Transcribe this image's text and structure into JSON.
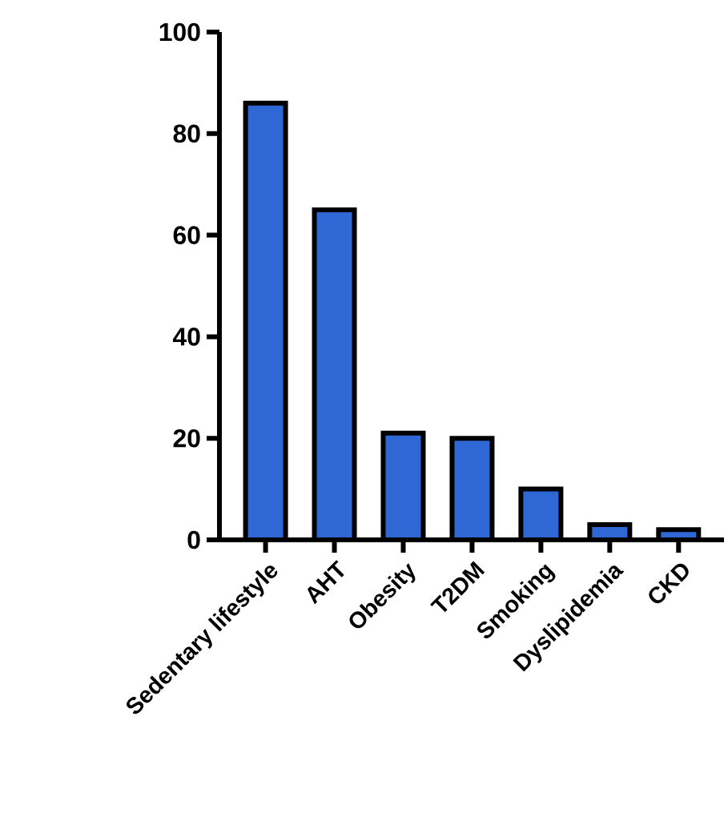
{
  "chart_data": {
    "type": "bar",
    "categories": [
      "Sedentary lifestyle",
      "AHT",
      "Obesity",
      "T2DM",
      "Smoking",
      "Dyslipidemia",
      "CKD"
    ],
    "values": [
      86,
      65,
      21,
      20,
      10,
      3,
      2
    ],
    "color": "#2f67d4",
    "ylim": [
      0,
      100
    ],
    "yticks": [
      0,
      20,
      40,
      60,
      80,
      100
    ]
  }
}
